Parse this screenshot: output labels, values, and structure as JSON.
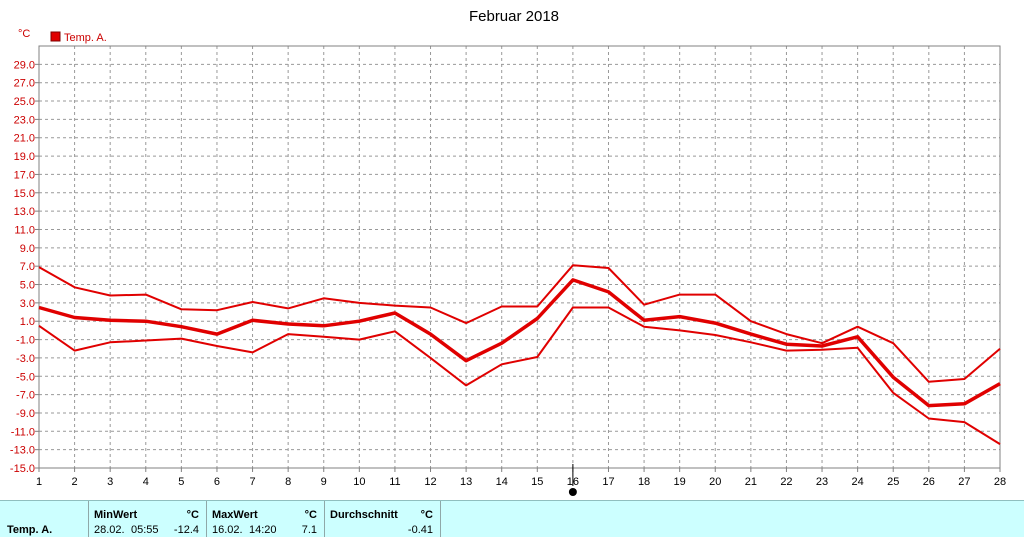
{
  "chart_data": {
    "type": "line",
    "title": "Februar 2018",
    "ylabel": "°C",
    "legend": [
      {
        "name": "Temp. A.",
        "color": "#e00000"
      }
    ],
    "legend_placement": "top-left",
    "grid": true,
    "xlim": [
      1,
      28
    ],
    "ylim": [
      -15,
      31
    ],
    "x": [
      1,
      2,
      3,
      4,
      5,
      6,
      7,
      8,
      9,
      10,
      11,
      12,
      13,
      14,
      15,
      16,
      17,
      18,
      19,
      20,
      21,
      22,
      23,
      24,
      25,
      26,
      27,
      28
    ],
    "x_tick_labels": [
      "1",
      "2",
      "3",
      "4",
      "5",
      "6",
      "7",
      "8",
      "9",
      "10",
      "11",
      "12",
      "13",
      "14",
      "15",
      "16",
      "17",
      "18",
      "19",
      "20",
      "21",
      "22",
      "23",
      "24",
      "25",
      "26",
      "27",
      "28"
    ],
    "y_tick_labels": [
      "29.0",
      "27.0",
      "25.0",
      "23.0",
      "21.0",
      "19.0",
      "17.0",
      "15.0",
      "13.0",
      "11.0",
      "9.0",
      "7.0",
      "5.0",
      "3.0",
      "1.0",
      "-1.0",
      "-3.0",
      "-5.0",
      "-7.0",
      "-9.0",
      "-11.0",
      "-13.0",
      "-15.0"
    ],
    "marker_x": 16,
    "series": [
      {
        "role": "max",
        "color": "#e00000",
        "width": 2,
        "values": [
          6.9,
          4.7,
          3.8,
          3.9,
          2.3,
          2.2,
          3.1,
          2.4,
          3.5,
          3.0,
          2.7,
          2.5,
          0.8,
          2.6,
          2.6,
          7.1,
          6.8,
          2.8,
          3.9,
          3.9,
          1.0,
          -0.4,
          -1.4,
          0.4,
          -1.4,
          -5.6,
          -5.3,
          -2.0
        ]
      },
      {
        "role": "mean",
        "color": "#e00000",
        "width": 3.5,
        "values": [
          2.5,
          1.4,
          1.1,
          1.0,
          0.4,
          -0.4,
          1.1,
          0.7,
          0.5,
          1.0,
          1.9,
          -0.4,
          -3.3,
          -1.4,
          1.3,
          5.5,
          4.2,
          1.1,
          1.5,
          0.8,
          -0.4,
          -1.5,
          -1.7,
          -0.7,
          -5.1,
          -8.2,
          -8.0,
          -5.8
        ]
      },
      {
        "role": "min",
        "color": "#e00000",
        "width": 2,
        "values": [
          0.5,
          -2.2,
          -1.3,
          -1.1,
          -0.9,
          -1.7,
          -2.4,
          -0.4,
          -0.7,
          -1.0,
          -0.1,
          -3.0,
          -6.0,
          -3.7,
          -2.9,
          2.5,
          2.5,
          0.4,
          0.0,
          -0.5,
          -1.3,
          -2.2,
          -2.1,
          -1.9,
          -6.8,
          -9.6,
          -10.0,
          -12.4
        ]
      }
    ]
  },
  "stats": {
    "row_label": "Temp. A.",
    "min": {
      "label": "MinWert",
      "unit": "°C",
      "date": "28.02.",
      "time": "05:55",
      "value": "-12.4"
    },
    "max": {
      "label": "MaxWert",
      "unit": "°C",
      "date": "16.02.",
      "time": "14:20",
      "value": "7.1"
    },
    "avg": {
      "label": "Durchschnitt",
      "unit": "°C",
      "value": "-0.41"
    }
  }
}
